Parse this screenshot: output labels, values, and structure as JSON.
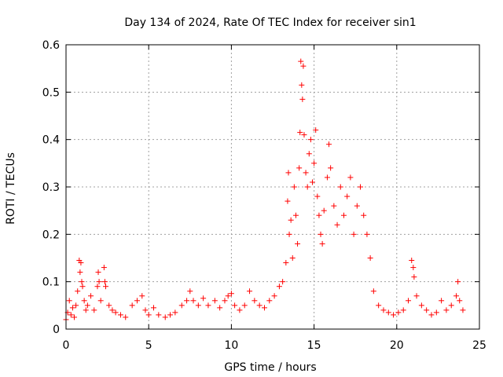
{
  "chart_data": {
    "type": "scatter",
    "title": "Day 134 of 2024, Rate Of TEC Index for receiver sin1",
    "xlabel": "GPS time / hours",
    "ylabel": "ROTI / TECUs",
    "xlim": [
      0,
      25
    ],
    "ylim": [
      0,
      0.6
    ],
    "xticks": [
      "0",
      "5",
      "10",
      "15",
      "20",
      "25"
    ],
    "yticks": [
      "0",
      "0.1",
      "0.2",
      "0.3",
      "0.4",
      "0.5",
      "0.6"
    ],
    "grid": true,
    "marker": "plus",
    "color": "#ff0000",
    "series": [
      {
        "points": [
          [
            0.0,
            0.02
          ],
          [
            0.1,
            0.035
          ],
          [
            0.2,
            0.06
          ],
          [
            0.3,
            0.03
          ],
          [
            0.4,
            0.045
          ],
          [
            0.5,
            0.025
          ],
          [
            0.6,
            0.05
          ],
          [
            0.7,
            0.08
          ],
          [
            0.8,
            0.145
          ],
          [
            0.85,
            0.12
          ],
          [
            0.9,
            0.14
          ],
          [
            0.95,
            0.1
          ],
          [
            1.0,
            0.09
          ],
          [
            1.1,
            0.06
          ],
          [
            1.2,
            0.04
          ],
          [
            1.3,
            0.05
          ],
          [
            1.5,
            0.07
          ],
          [
            1.7,
            0.04
          ],
          [
            1.9,
            0.09
          ],
          [
            1.95,
            0.12
          ],
          [
            2.0,
            0.1
          ],
          [
            2.1,
            0.06
          ],
          [
            2.3,
            0.13
          ],
          [
            2.35,
            0.1
          ],
          [
            2.4,
            0.09
          ],
          [
            2.6,
            0.05
          ],
          [
            2.8,
            0.04
          ],
          [
            3.0,
            0.035
          ],
          [
            3.3,
            0.03
          ],
          [
            3.6,
            0.025
          ],
          [
            4.0,
            0.05
          ],
          [
            4.3,
            0.06
          ],
          [
            4.6,
            0.07
          ],
          [
            4.8,
            0.04
          ],
          [
            5.0,
            0.03
          ],
          [
            5.3,
            0.045
          ],
          [
            5.6,
            0.03
          ],
          [
            6.0,
            0.025
          ],
          [
            6.3,
            0.03
          ],
          [
            6.6,
            0.035
          ],
          [
            7.0,
            0.05
          ],
          [
            7.3,
            0.06
          ],
          [
            7.5,
            0.08
          ],
          [
            7.7,
            0.06
          ],
          [
            8.0,
            0.05
          ],
          [
            8.3,
            0.065
          ],
          [
            8.6,
            0.05
          ],
          [
            9.0,
            0.06
          ],
          [
            9.3,
            0.045
          ],
          [
            9.6,
            0.06
          ],
          [
            9.8,
            0.07
          ],
          [
            10.0,
            0.075
          ],
          [
            10.2,
            0.05
          ],
          [
            10.5,
            0.04
          ],
          [
            10.8,
            0.05
          ],
          [
            11.1,
            0.08
          ],
          [
            11.4,
            0.06
          ],
          [
            11.7,
            0.05
          ],
          [
            12.0,
            0.045
          ],
          [
            12.3,
            0.06
          ],
          [
            12.6,
            0.07
          ],
          [
            12.9,
            0.09
          ],
          [
            13.1,
            0.1
          ],
          [
            13.3,
            0.14
          ],
          [
            13.4,
            0.27
          ],
          [
            13.45,
            0.33
          ],
          [
            13.5,
            0.2
          ],
          [
            13.6,
            0.23
          ],
          [
            13.7,
            0.15
          ],
          [
            13.8,
            0.3
          ],
          [
            13.9,
            0.24
          ],
          [
            14.0,
            0.18
          ],
          [
            14.1,
            0.34
          ],
          [
            14.15,
            0.415
          ],
          [
            14.2,
            0.565
          ],
          [
            14.25,
            0.515
          ],
          [
            14.3,
            0.485
          ],
          [
            14.35,
            0.555
          ],
          [
            14.4,
            0.41
          ],
          [
            14.5,
            0.33
          ],
          [
            14.6,
            0.3
          ],
          [
            14.7,
            0.37
          ],
          [
            14.8,
            0.4
          ],
          [
            14.9,
            0.31
          ],
          [
            15.0,
            0.35
          ],
          [
            15.1,
            0.42
          ],
          [
            15.2,
            0.28
          ],
          [
            15.3,
            0.24
          ],
          [
            15.4,
            0.2
          ],
          [
            15.5,
            0.18
          ],
          [
            15.6,
            0.25
          ],
          [
            15.8,
            0.32
          ],
          [
            15.9,
            0.39
          ],
          [
            16.0,
            0.34
          ],
          [
            16.2,
            0.26
          ],
          [
            16.4,
            0.22
          ],
          [
            16.6,
            0.3
          ],
          [
            16.8,
            0.24
          ],
          [
            17.0,
            0.28
          ],
          [
            17.2,
            0.32
          ],
          [
            17.4,
            0.2
          ],
          [
            17.6,
            0.26
          ],
          [
            17.8,
            0.3
          ],
          [
            18.0,
            0.24
          ],
          [
            18.2,
            0.2
          ],
          [
            18.4,
            0.15
          ],
          [
            18.6,
            0.08
          ],
          [
            18.9,
            0.05
          ],
          [
            19.2,
            0.04
          ],
          [
            19.5,
            0.035
          ],
          [
            19.8,
            0.03
          ],
          [
            20.1,
            0.035
          ],
          [
            20.4,
            0.04
          ],
          [
            20.7,
            0.06
          ],
          [
            20.9,
            0.145
          ],
          [
            21.0,
            0.13
          ],
          [
            21.05,
            0.11
          ],
          [
            21.2,
            0.07
          ],
          [
            21.5,
            0.05
          ],
          [
            21.8,
            0.04
          ],
          [
            22.1,
            0.03
          ],
          [
            22.4,
            0.035
          ],
          [
            22.7,
            0.06
          ],
          [
            23.0,
            0.04
          ],
          [
            23.3,
            0.05
          ],
          [
            23.6,
            0.07
          ],
          [
            23.7,
            0.1
          ],
          [
            23.8,
            0.06
          ],
          [
            24.0,
            0.04
          ]
        ]
      }
    ]
  }
}
